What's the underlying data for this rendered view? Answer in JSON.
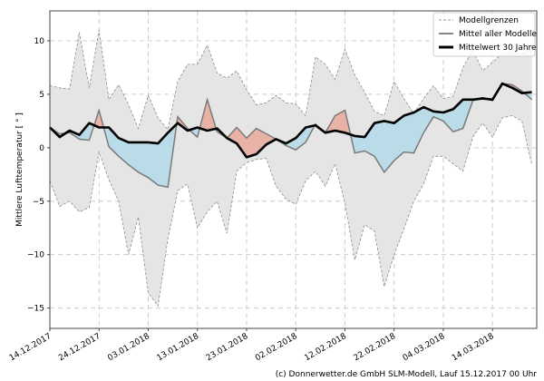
{
  "chart_data": {
    "type": "area",
    "title": "",
    "xlabel": "",
    "ylabel": "Mittlere Lufttemperatur [ ° ]",
    "xlim": [
      "14.12.2017",
      "23.03.2018"
    ],
    "ylim": [
      -16.9,
      12.8
    ],
    "grid": true,
    "legend_placement": "top-right",
    "x_ticks": [
      "14.12.2017",
      "24.12.2017",
      "03.01.2018",
      "13.01.2018",
      "23.01.2018",
      "02.02.2018",
      "12.02.2018",
      "22.02.2018",
      "04.03.2018",
      "14.03.2018"
    ],
    "y_ticks": [
      -15,
      -10,
      -5,
      0,
      5,
      10
    ],
    "x": [
      "14.12.2017",
      "16.12.2017",
      "18.12.2017",
      "20.12.2017",
      "22.12.2017",
      "24.12.2017",
      "26.12.2017",
      "28.12.2017",
      "30.12.2017",
      "01.01.2018",
      "03.01.2018",
      "05.01.2018",
      "07.01.2018",
      "09.01.2018",
      "11.01.2018",
      "13.01.2018",
      "15.01.2018",
      "17.01.2018",
      "19.01.2018",
      "21.01.2018",
      "23.01.2018",
      "25.01.2018",
      "27.01.2018",
      "29.01.2018",
      "31.01.2018",
      "02.02.2018",
      "04.02.2018",
      "06.02.2018",
      "08.02.2018",
      "10.02.2018",
      "12.02.2018",
      "14.02.2018",
      "16.02.2018",
      "18.02.2018",
      "20.02.2018",
      "22.02.2018",
      "24.02.2018",
      "26.02.2018",
      "28.02.2018",
      "02.03.2018",
      "04.03.2018",
      "06.03.2018",
      "08.03.2018",
      "10.03.2018",
      "12.03.2018",
      "14.03.2018",
      "16.03.2018",
      "18.03.2018",
      "20.03.2018",
      "22.03.2018"
    ],
    "series": [
      {
        "name": "Modellgrenzen",
        "role": "upper",
        "values": [
          5.8,
          5.6,
          5.5,
          10.8,
          5.6,
          11.0,
          4.5,
          5.9,
          4.0,
          1.8,
          4.9,
          2.8,
          1.7,
          6.2,
          7.8,
          7.8,
          9.6,
          7.0,
          6.5,
          7.2,
          5.4,
          4.0,
          4.2,
          4.9,
          4.2,
          4.1,
          3.0,
          8.5,
          7.8,
          6.4,
          9.2,
          6.8,
          5.2,
          3.4,
          3.0,
          6.2,
          4.6,
          3.2,
          4.6,
          5.8,
          4.6,
          4.8,
          7.5,
          9.2,
          7.2,
          8.0,
          8.8,
          9.0,
          8.8,
          9.2
        ]
      },
      {
        "name": "Modellgrenzen",
        "role": "lower",
        "values": [
          -3.1,
          -5.5,
          -5.0,
          -6.0,
          -5.6,
          -0.4,
          -3.0,
          -5.0,
          -10.0,
          -6.5,
          -13.6,
          -14.8,
          -8.5,
          -4.0,
          -3.4,
          -7.5,
          -6.0,
          -5.0,
          -8.0,
          -2.2,
          -1.4,
          -1.1,
          -1.0,
          -3.6,
          -4.8,
          -5.3,
          -3.1,
          -2.2,
          -3.6,
          -1.5,
          -5.2,
          -10.5,
          -7.2,
          -7.8,
          -13.0,
          -10.0,
          -7.6,
          -5.0,
          -3.4,
          -0.8,
          -0.8,
          -1.5,
          -2.2,
          1.0,
          2.3,
          1.0,
          2.8,
          3.0,
          2.5,
          -1.6
        ]
      },
      {
        "name": "Mittel aller Modelle",
        "values": [
          1.9,
          1.3,
          1.4,
          0.8,
          0.7,
          3.5,
          0.1,
          -0.8,
          -1.6,
          -2.3,
          -2.8,
          -3.5,
          -3.7,
          2.9,
          1.8,
          1.0,
          4.5,
          1.5,
          0.9,
          1.9,
          0.9,
          1.8,
          1.3,
          0.8,
          0.2,
          -0.2,
          0.5,
          2.2,
          1.4,
          3.0,
          3.5,
          -0.5,
          -0.3,
          -0.8,
          -2.3,
          -1.2,
          -0.4,
          -0.5,
          1.4,
          2.9,
          2.5,
          1.5,
          1.8,
          4.4,
          4.7,
          4.4,
          6.0,
          5.9,
          5.3,
          4.5
        ]
      },
      {
        "name": "Mittelwert 30 Jahre",
        "values": [
          1.9,
          1.0,
          1.6,
          1.2,
          2.3,
          1.9,
          1.9,
          0.9,
          0.5,
          0.5,
          0.5,
          0.4,
          1.4,
          2.3,
          1.6,
          1.9,
          1.6,
          1.8,
          0.9,
          0.4,
          -0.9,
          -0.6,
          0.3,
          0.8,
          0.4,
          0.9,
          1.9,
          2.1,
          1.4,
          1.6,
          1.4,
          1.1,
          1.0,
          2.3,
          2.5,
          2.3,
          3.0,
          3.3,
          3.8,
          3.4,
          3.3,
          3.6,
          4.5,
          4.5,
          4.6,
          4.5,
          6.0,
          5.6,
          5.1,
          5.2
        ]
      }
    ],
    "colors": {
      "band": "#e5e5e5",
      "band_edge": "#8c8c8c",
      "model_mean": "#7a7a7a",
      "climate_mean": "#000000",
      "warmer": "#e8b3a6",
      "colder": "#badbe8",
      "grid": "#cccccc"
    }
  },
  "legend": {
    "items": [
      "Modellgrenzen",
      "Mittel aller Modelle",
      "Mittelwert 30 Jahre"
    ]
  },
  "footer": "(c) Donnerwetter.de GmbH SLM-Modell, Lauf 15.12.2017 00 Uhr"
}
